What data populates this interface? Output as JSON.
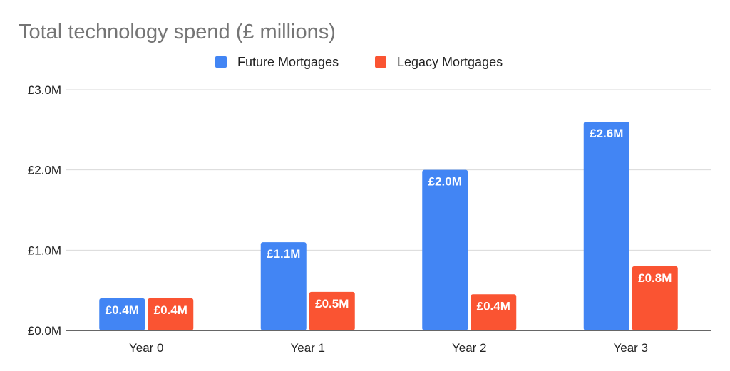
{
  "chart_data": {
    "type": "bar",
    "title": "Total technology spend (£ millions)",
    "categories": [
      "Year 0",
      "Year 1",
      "Year 2",
      "Year 3"
    ],
    "series": [
      {
        "name": "Future Mortgages",
        "color": "#4285f4",
        "values": [
          0.4,
          1.1,
          2.0,
          2.6
        ],
        "labels": [
          "£0.4M",
          "£1.1M",
          "£2.0M",
          "£2.6M"
        ]
      },
      {
        "name": "Legacy Mortgages",
        "color": "#fa5432",
        "values": [
          0.4,
          0.48,
          0.45,
          0.8
        ],
        "labels": [
          "£0.4M",
          "£0.5M",
          "£0.4M",
          "£0.8M"
        ]
      }
    ],
    "y_ticks": [
      {
        "value": 0,
        "label": "£0.0M"
      },
      {
        "value": 1,
        "label": "£1.0M"
      },
      {
        "value": 2,
        "label": "£2.0M"
      },
      {
        "value": 3,
        "label": "£3.0M"
      }
    ],
    "ylim": [
      0,
      3
    ],
    "grid": true,
    "legend_position": "top-center"
  }
}
